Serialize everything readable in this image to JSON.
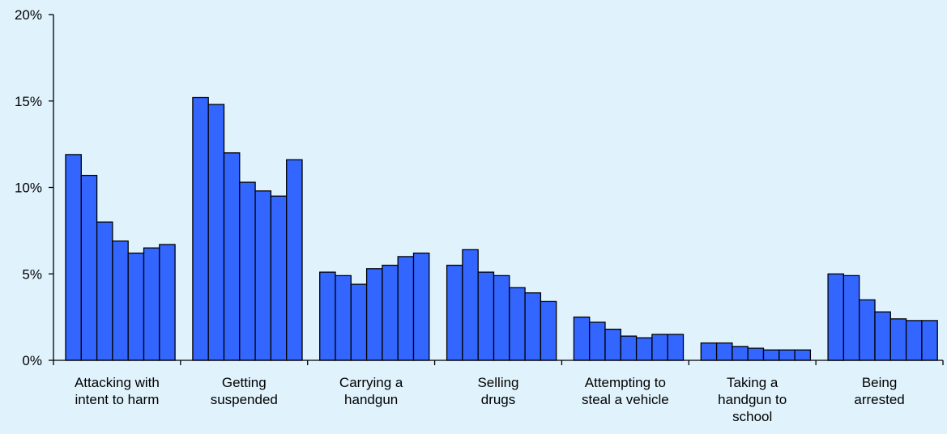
{
  "chart_data": {
    "type": "bar",
    "title": "",
    "xlabel": "",
    "ylabel": "",
    "ylim": [
      0,
      20
    ],
    "yticks": [
      "0%",
      "5%",
      "10%",
      "15%",
      "20%"
    ],
    "ytick_values": [
      0,
      5,
      10,
      15,
      20
    ],
    "grid": false,
    "bar_color": "#3366ff",
    "categories": [
      [
        "Attacking with",
        "intent to harm"
      ],
      [
        "Getting",
        "suspended"
      ],
      [
        "Carrying a",
        "handgun"
      ],
      [
        "Selling",
        "drugs"
      ],
      [
        "Attempting to",
        "steal a vehicle"
      ],
      [
        "Taking a",
        "handgun to",
        "school"
      ],
      [
        "Being",
        "arrested"
      ]
    ],
    "values": [
      [
        11.9,
        10.7,
        8.0,
        6.9,
        6.2,
        6.5,
        6.7
      ],
      [
        15.2,
        14.8,
        12.0,
        10.3,
        9.8,
        9.5,
        11.6
      ],
      [
        5.1,
        4.9,
        4.4,
        5.3,
        5.5,
        6.0,
        6.2
      ],
      [
        5.5,
        6.4,
        5.1,
        4.9,
        4.2,
        3.9,
        3.4
      ],
      [
        2.5,
        2.2,
        1.8,
        1.4,
        1.3,
        1.5,
        1.5
      ],
      [
        1.0,
        1.0,
        0.8,
        0.7,
        0.6,
        0.6,
        0.6
      ],
      [
        5.0,
        4.9,
        3.5,
        2.8,
        2.4,
        2.3,
        2.3
      ]
    ]
  }
}
